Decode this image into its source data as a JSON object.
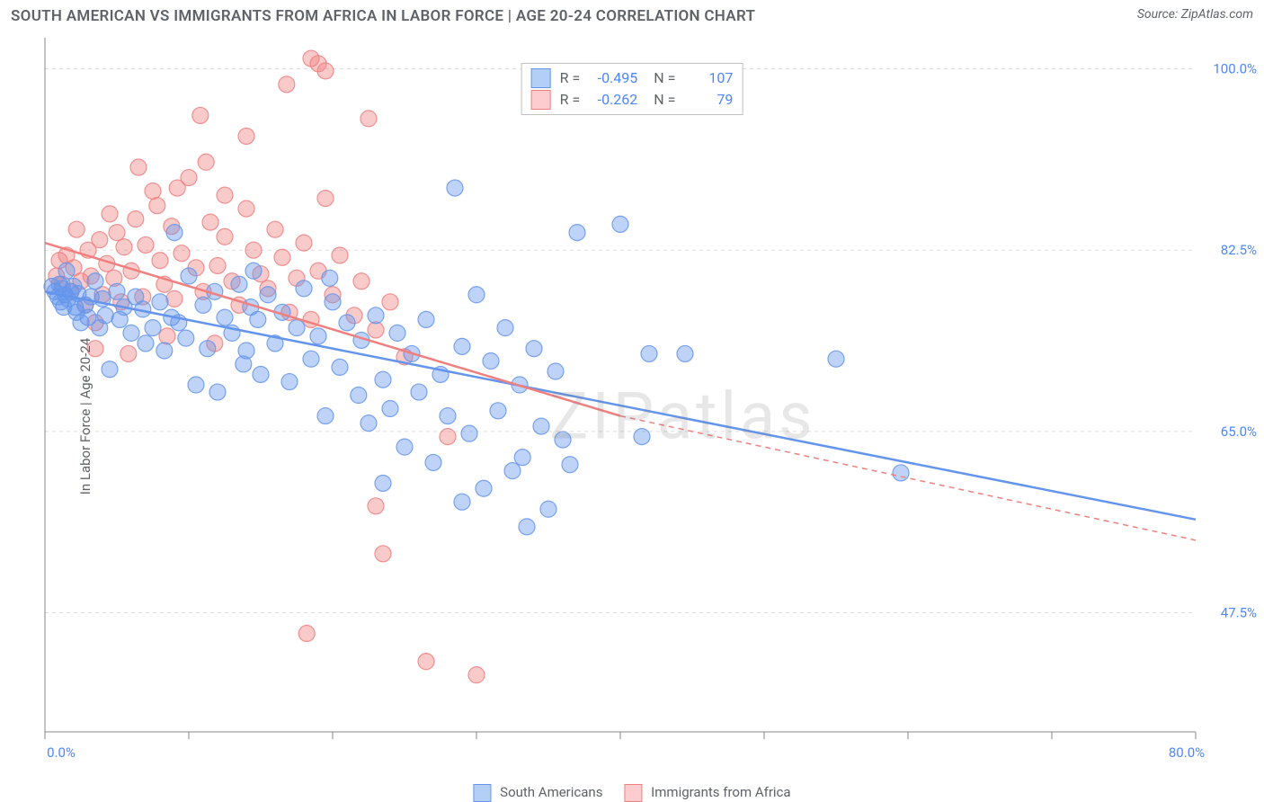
{
  "title": "SOUTH AMERICAN VS IMMIGRANTS FROM AFRICA IN LABOR FORCE | AGE 20-24 CORRELATION CHART",
  "source": "Source: ZipAtlas.com",
  "watermark": "ZIPatlas",
  "chart": {
    "type": "scatter",
    "ylabel": "In Labor Force | Age 20-24",
    "xlim": [
      0,
      80
    ],
    "ylim": [
      36,
      103
    ],
    "xticks": [
      {
        "pos": 0,
        "label": "0.0%"
      },
      {
        "pos": 80,
        "label": "80.0%"
      }
    ],
    "xtick_minor": [
      10,
      20,
      30,
      40,
      50,
      60,
      70
    ],
    "yticks": [
      {
        "pos": 47.5,
        "label": "47.5%"
      },
      {
        "pos": 65.0,
        "label": "65.0%"
      },
      {
        "pos": 82.5,
        "label": "82.5%"
      },
      {
        "pos": 100.0,
        "label": "100.0%"
      }
    ],
    "background_color": "#ffffff",
    "grid_color": "#dddddd",
    "axis_color": "#888888",
    "marker_radius": 9,
    "marker_opacity": 0.42,
    "marker_stroke_opacity": 0.85,
    "line_width": 2.5,
    "series": [
      {
        "name": "South Americans",
        "color": "#6495ed",
        "fill": "#b3cff5",
        "R": "-0.495",
        "N": "107",
        "trend_solid": {
          "x1": 0,
          "y1": 78.5,
          "x2": 80,
          "y2": 56.5
        },
        "points": [
          [
            0.5,
            79
          ],
          [
            0.7,
            78.5
          ],
          [
            0.9,
            78
          ],
          [
            1.0,
            79.2
          ],
          [
            1.1,
            77.5
          ],
          [
            1.2,
            78.8
          ],
          [
            1.3,
            77
          ],
          [
            1.4,
            78.2
          ],
          [
            1.5,
            80.5
          ],
          [
            1.6,
            77.8
          ],
          [
            1.8,
            78.5
          ],
          [
            2.0,
            79
          ],
          [
            2.1,
            77
          ],
          [
            2.2,
            76.5
          ],
          [
            2.3,
            78.3
          ],
          [
            2.5,
            75.5
          ],
          [
            2.8,
            77.2
          ],
          [
            3.0,
            76
          ],
          [
            3.2,
            78
          ],
          [
            3.5,
            79.5
          ],
          [
            3.8,
            75
          ],
          [
            4.0,
            77.8
          ],
          [
            4.2,
            76.2
          ],
          [
            4.5,
            71
          ],
          [
            5.0,
            78.5
          ],
          [
            5.2,
            75.8
          ],
          [
            5.5,
            77
          ],
          [
            6.0,
            74.5
          ],
          [
            6.3,
            78
          ],
          [
            6.8,
            76.8
          ],
          [
            7.0,
            73.5
          ],
          [
            7.5,
            75
          ],
          [
            8.0,
            77.5
          ],
          [
            8.3,
            72.8
          ],
          [
            8.8,
            76
          ],
          [
            9.0,
            84.2
          ],
          [
            9.3,
            75.5
          ],
          [
            9.8,
            74
          ],
          [
            10.0,
            80
          ],
          [
            10.5,
            69.5
          ],
          [
            11.0,
            77.2
          ],
          [
            11.3,
            73
          ],
          [
            11.8,
            78.5
          ],
          [
            12.0,
            68.8
          ],
          [
            12.5,
            76
          ],
          [
            13.0,
            74.5
          ],
          [
            13.5,
            79.2
          ],
          [
            13.8,
            71.5
          ],
          [
            14.0,
            72.8
          ],
          [
            14.3,
            77
          ],
          [
            14.8,
            75.8
          ],
          [
            15.0,
            70.5
          ],
          [
            15.5,
            78.2
          ],
          [
            16.0,
            73.5
          ],
          [
            16.5,
            76.5
          ],
          [
            17.0,
            69.8
          ],
          [
            17.5,
            75
          ],
          [
            18.0,
            78.8
          ],
          [
            18.5,
            72
          ],
          [
            19.0,
            74.2
          ],
          [
            19.5,
            66.5
          ],
          [
            20.0,
            77.5
          ],
          [
            20.5,
            71.2
          ],
          [
            21.0,
            75.5
          ],
          [
            21.8,
            68.5
          ],
          [
            22.0,
            73.8
          ],
          [
            22.5,
            65.8
          ],
          [
            23.0,
            76.2
          ],
          [
            23.5,
            70
          ],
          [
            24.0,
            67.2
          ],
          [
            24.5,
            74.5
          ],
          [
            25.0,
            63.5
          ],
          [
            25.5,
            72.5
          ],
          [
            26.0,
            68.8
          ],
          [
            26.5,
            75.8
          ],
          [
            27.0,
            62
          ],
          [
            27.5,
            70.5
          ],
          [
            28.0,
            66.5
          ],
          [
            28.5,
            88.5
          ],
          [
            29.0,
            73.2
          ],
          [
            29.5,
            64.8
          ],
          [
            30.0,
            78.2
          ],
          [
            30.5,
            59.5
          ],
          [
            31.0,
            71.8
          ],
          [
            31.5,
            67
          ],
          [
            32.0,
            75
          ],
          [
            32.5,
            61.2
          ],
          [
            33.0,
            69.5
          ],
          [
            33.5,
            55.8
          ],
          [
            34.0,
            73
          ],
          [
            34.5,
            65.5
          ],
          [
            35.0,
            57.5
          ],
          [
            35.5,
            70.8
          ],
          [
            36.0,
            64.2
          ],
          [
            36.5,
            61.8
          ],
          [
            37.0,
            84.2
          ],
          [
            40.0,
            85
          ],
          [
            41.5,
            64.5
          ],
          [
            42.0,
            72.5
          ],
          [
            44.5,
            72.5
          ],
          [
            55.0,
            72
          ],
          [
            59.5,
            61
          ],
          [
            23.5,
            60
          ],
          [
            29.0,
            58.2
          ],
          [
            14.5,
            80.5
          ],
          [
            19.8,
            79.8
          ],
          [
            33.2,
            62.5
          ]
        ]
      },
      {
        "name": "Immigrants from Africa",
        "color": "#f08080",
        "fill": "#fccccf",
        "R": "-0.262",
        "N": "79",
        "trend_solid": {
          "x1": 0,
          "y1": 83.2,
          "x2": 40,
          "y2": 66.5
        },
        "trend_dashed": {
          "x1": 40,
          "y1": 66.5,
          "x2": 80,
          "y2": 54.5
        },
        "points": [
          [
            0.8,
            80
          ],
          [
            1.0,
            81.5
          ],
          [
            1.2,
            79.2
          ],
          [
            1.5,
            82
          ],
          [
            1.8,
            78.5
          ],
          [
            2.0,
            80.8
          ],
          [
            2.2,
            84.5
          ],
          [
            2.5,
            79.5
          ],
          [
            2.8,
            77.2
          ],
          [
            3.0,
            82.5
          ],
          [
            3.2,
            80
          ],
          [
            3.5,
            75.5
          ],
          [
            3.8,
            83.5
          ],
          [
            4.0,
            78.2
          ],
          [
            4.3,
            81.2
          ],
          [
            4.5,
            86
          ],
          [
            4.8,
            79.8
          ],
          [
            5.0,
            84.2
          ],
          [
            5.3,
            77.5
          ],
          [
            5.5,
            82.8
          ],
          [
            6.0,
            80.5
          ],
          [
            6.3,
            85.5
          ],
          [
            6.8,
            78
          ],
          [
            7.0,
            83
          ],
          [
            7.5,
            88.2
          ],
          [
            8.0,
            81.5
          ],
          [
            8.3,
            79.2
          ],
          [
            8.8,
            84.8
          ],
          [
            9.0,
            77.8
          ],
          [
            9.5,
            82.2
          ],
          [
            10.0,
            89.5
          ],
          [
            10.5,
            80.8
          ],
          [
            11.0,
            78.5
          ],
          [
            11.5,
            85.2
          ],
          [
            12.0,
            81
          ],
          [
            12.5,
            83.8
          ],
          [
            13.0,
            79.5
          ],
          [
            13.5,
            77.2
          ],
          [
            14.0,
            86.5
          ],
          [
            14.5,
            82.5
          ],
          [
            15.0,
            80.2
          ],
          [
            15.5,
            78.8
          ],
          [
            16.0,
            84.5
          ],
          [
            16.5,
            81.8
          ],
          [
            17.0,
            76.5
          ],
          [
            17.5,
            79.8
          ],
          [
            18.0,
            83.2
          ],
          [
            18.5,
            75.8
          ],
          [
            19.0,
            80.5
          ],
          [
            19.5,
            87.5
          ],
          [
            20.0,
            78.2
          ],
          [
            20.5,
            82
          ],
          [
            21.5,
            76.2
          ],
          [
            22.0,
            79.5
          ],
          [
            23.0,
            74.8
          ],
          [
            24.0,
            77.5
          ],
          [
            25.0,
            72.2
          ],
          [
            18.5,
            101
          ],
          [
            14.0,
            93.5
          ],
          [
            19.0,
            100.5
          ],
          [
            22.5,
            95.2
          ],
          [
            19.5,
            99.8
          ],
          [
            11.2,
            91
          ],
          [
            16.8,
            98.5
          ],
          [
            18.2,
            45.5
          ],
          [
            23.5,
            53.2
          ],
          [
            26.5,
            42.8
          ],
          [
            28.0,
            64.5
          ],
          [
            30.0,
            41.5
          ],
          [
            23.0,
            57.8
          ],
          [
            12.5,
            87.8
          ],
          [
            6.5,
            90.5
          ],
          [
            7.8,
            86.8
          ],
          [
            9.2,
            88.5
          ],
          [
            3.5,
            73
          ],
          [
            5.8,
            72.5
          ],
          [
            8.5,
            74.2
          ],
          [
            11.8,
            73.5
          ],
          [
            10.8,
            95.5
          ]
        ]
      }
    ]
  }
}
